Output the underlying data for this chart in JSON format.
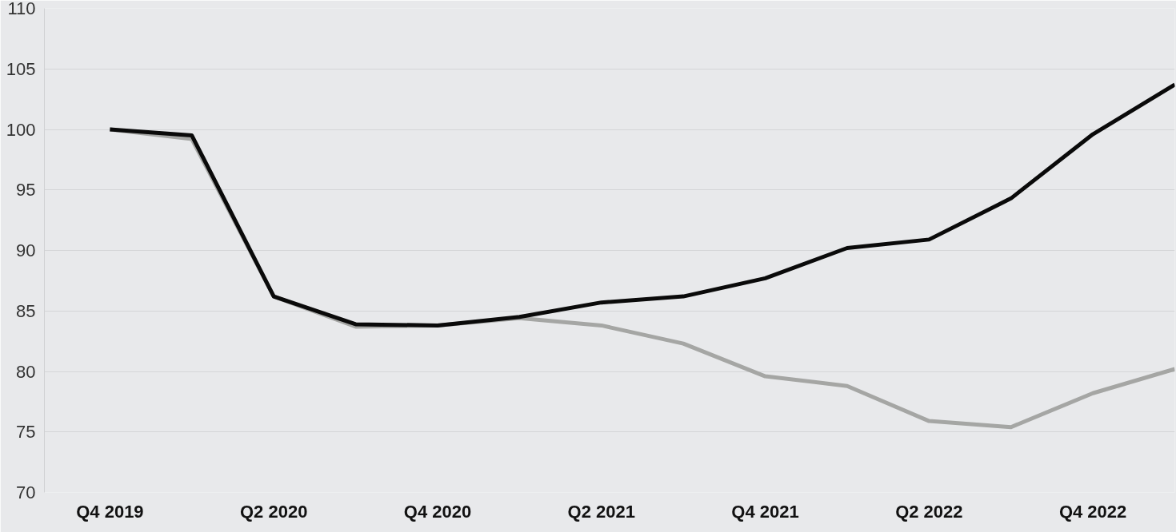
{
  "chart_data": {
    "type": "line",
    "categories": [
      "Q4 2019",
      null,
      "Q2 2020",
      null,
      "Q4 2020",
      null,
      "Q2 2021",
      null,
      "Q4 2021",
      null,
      "Q2 2022",
      null,
      "Q4 2022",
      null
    ],
    "series": [
      {
        "color": "#a5a6a4",
        "values": [
          100,
          99.2,
          86.2,
          83.7,
          83.8,
          84.4,
          83.8,
          82.3,
          79.6,
          78.8,
          75.9,
          75.4,
          78.2,
          80.2
        ]
      },
      {
        "color": "#0a0a0a",
        "values": [
          100,
          99.5,
          86.2,
          83.9,
          83.8,
          84.5,
          85.7,
          86.2,
          87.7,
          90.2,
          90.9,
          94.3,
          99.6,
          103.7
        ]
      }
    ],
    "ylim": [
      70,
      110
    ],
    "yticks": [
      70,
      75,
      80,
      85,
      90,
      95,
      100,
      105,
      110
    ],
    "grid": "y",
    "marker": "none",
    "line_style": "solid"
  }
}
